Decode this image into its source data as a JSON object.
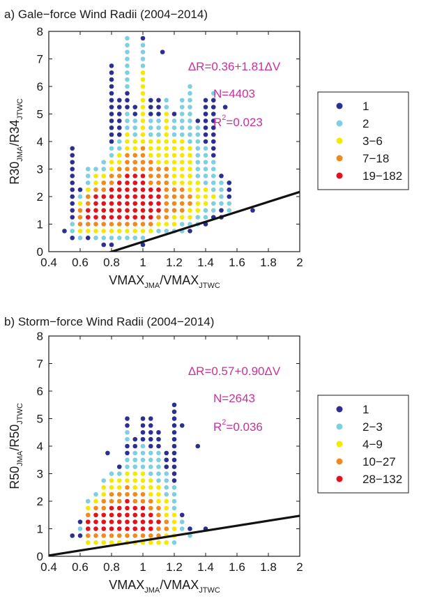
{
  "chart_data": [
    {
      "type": "scatter",
      "title": "a) Gale−force Wind Radii (2004−2014)",
      "xlabel": {
        "main": "VMAX",
        "sub1": "JMA",
        "mid": "/VMAX",
        "sub2": "JTWC"
      },
      "ylabel": {
        "main": "R30",
        "sub1": "JMA",
        "mid": "/R34",
        "sub2": "JTWC"
      },
      "xlim": [
        0.4,
        2
      ],
      "ylim": [
        0,
        8
      ],
      "xticks": [
        "0.4",
        "0.6",
        "0.8",
        "1",
        "1.2",
        "1.4",
        "1.6",
        "1.8",
        "2"
      ],
      "yticks": [
        "0",
        "1",
        "2",
        "3",
        "4",
        "5",
        "6",
        "7",
        "8"
      ],
      "grid": false,
      "legend_position": "right",
      "legend": [
        {
          "label": "1",
          "color": "#2b2f8f"
        },
        {
          "label": "2",
          "color": "#7ecfe0"
        },
        {
          "label": "3−6",
          "color": "#f5e900"
        },
        {
          "label": "7−18",
          "color": "#f08a1e"
        },
        {
          "label": "19−182",
          "color": "#e3121c"
        }
      ],
      "annotations": [
        "ΔR=0.36+1.81ΔV",
        "N=4403",
        "R",
        "2",
        "=0.023"
      ],
      "regression": {
        "intercept": 0.36,
        "slope": 1.81,
        "x": [
          0.4,
          2
        ]
      },
      "point_grid": {
        "x_step": 0.05,
        "y_step": 0.25
      },
      "points": [
        {
          "x": 0.5,
          "range": [
            0.75,
            0.75
          ],
          "tiers": [
            "1"
          ]
        },
        {
          "x": 0.55,
          "range": [
            0.5,
            3.75
          ],
          "tiers": [
            "1",
            "2",
            "2",
            "1",
            "1",
            "1",
            "1",
            "1",
            "1",
            "1",
            "1",
            "1",
            "1",
            "1"
          ]
        },
        {
          "x": 0.6,
          "range": [
            0.5,
            2.25
          ],
          "tiers": [
            "2",
            "3",
            "4",
            "4",
            "4",
            "3",
            "2",
            "1"
          ]
        },
        {
          "x": 0.65,
          "range": [
            0.5,
            3.0
          ],
          "tiers": [
            "1",
            "3",
            "4",
            "5",
            "5",
            "4",
            "4",
            "3",
            "2",
            "2",
            "2"
          ]
        },
        {
          "x": 0.7,
          "range": [
            0.5,
            3.0
          ],
          "tiers": [
            "2",
            "3",
            "4",
            "5",
            "5",
            "5",
            "5",
            "4",
            "3",
            "3",
            "2"
          ]
        },
        {
          "x": 0.75,
          "range": [
            0.25,
            3.25
          ],
          "tiers": [
            "1",
            "2",
            "3",
            "4",
            "5",
            "5",
            "5",
            "5",
            "4",
            "4",
            "3",
            "2",
            "2"
          ]
        },
        {
          "x": 0.8,
          "range": [
            0.25,
            6.75
          ],
          "tiers": [
            "1",
            "2",
            "3",
            "4",
            "5",
            "5",
            "5",
            "5",
            "5",
            "4",
            "4",
            "3",
            "3",
            "2",
            "2",
            "1",
            "1",
            "1",
            "1",
            "1",
            "1",
            "1",
            "1",
            "1",
            "1",
            "1",
            "1"
          ]
        },
        {
          "x": 0.85,
          "range": [
            0.5,
            5.5
          ],
          "tiers": [
            "2",
            "3",
            "4",
            "5",
            "5",
            "5",
            "5",
            "5",
            "5",
            "4",
            "4",
            "3",
            "3",
            "2",
            "2",
            "1",
            "1",
            "1",
            "1",
            "1",
            "1"
          ]
        },
        {
          "x": 0.9,
          "range": [
            0.5,
            7.75
          ],
          "tiers": [
            "2",
            "3",
            "4",
            "5",
            "5",
            "5",
            "5",
            "5",
            "5",
            "5",
            "4",
            "4",
            "4",
            "3",
            "3",
            "3",
            "2",
            "2",
            "2",
            "1",
            "1",
            "1",
            "2",
            "2",
            "2",
            "2",
            "2",
            "2",
            "2",
            "2"
          ]
        },
        {
          "x": 0.95,
          "range": [
            0.5,
            5.25
          ],
          "tiers": [
            "2",
            "3",
            "4",
            "5",
            "5",
            "5",
            "5",
            "5",
            "5",
            "5",
            "4",
            "4",
            "4",
            "3",
            "3",
            "2",
            "2",
            "2",
            "1",
            "1"
          ]
        },
        {
          "x": 1.0,
          "range": [
            0.25,
            7.75
          ],
          "tiers": [
            "1",
            "2",
            "3",
            "4",
            "5",
            "5",
            "5",
            "5",
            "5",
            "5",
            "5",
            "4",
            "4",
            "4",
            "4",
            "3",
            "3",
            "3",
            "3",
            "3",
            "3",
            "3",
            "3",
            "3",
            "3",
            "3",
            "2",
            "2",
            "2",
            "2",
            "1"
          ]
        },
        {
          "x": 1.05,
          "range": [
            0.75,
            5.5
          ],
          "tiers": [
            "3",
            "4",
            "5",
            "5",
            "5",
            "5",
            "5",
            "4",
            "4",
            "4",
            "4",
            "3",
            "3",
            "3",
            "2",
            "2",
            "2",
            "1",
            "1",
            "1"
          ]
        },
        {
          "x": 1.1,
          "range": [
            0.75,
            5.75
          ],
          "tiers": [
            "2",
            "3",
            "4",
            "5",
            "5",
            "5",
            "5",
            "4",
            "4",
            "4",
            "3",
            "3",
            "3",
            "3",
            "2",
            "2",
            "2",
            "1",
            "1",
            "1"
          ]
        },
        {
          "x": 1.15,
          "range": [
            0.75,
            5.75
          ],
          "tiers": [
            "2",
            "3",
            "4",
            "4",
            "4",
            "4",
            "4",
            "4",
            "4",
            "4",
            "3",
            "3",
            "3",
            "3",
            "3",
            "3",
            "3",
            "3",
            "2",
            "2"
          ]
        },
        {
          "x": 1.2,
          "range": [
            0.75,
            5.0
          ],
          "tiers": [
            "2",
            "3",
            "3",
            "4",
            "4",
            "4",
            "4",
            "3",
            "3",
            "3",
            "3",
            "3",
            "3",
            "3",
            "2",
            "2",
            "2",
            "1"
          ]
        },
        {
          "x": 1.25,
          "range": [
            0.75,
            5.75
          ],
          "tiers": [
            "2",
            "2",
            "3",
            "4",
            "4",
            "4",
            "4",
            "3",
            "3",
            "3",
            "3",
            "3",
            "3",
            "3",
            "2",
            "2",
            "2",
            "2",
            "2",
            "2"
          ]
        },
        {
          "x": 1.3,
          "range": [
            0.75,
            6.0
          ],
          "tiers": [
            "1",
            "2",
            "3",
            "3",
            "4",
            "4",
            "3",
            "3",
            "3",
            "3",
            "3",
            "3",
            "3",
            "2",
            "2",
            "2",
            "2",
            "2",
            "2",
            "2",
            "2",
            "2"
          ]
        },
        {
          "x": 1.35,
          "range": [
            1.0,
            4.75
          ],
          "tiers": [
            "2",
            "2",
            "3",
            "3",
            "3",
            "3",
            "3",
            "2",
            "2",
            "2",
            "2",
            "2",
            "2",
            "2",
            "2",
            "1"
          ]
        },
        {
          "x": 1.4,
          "range": [
            1.0,
            5.5
          ],
          "tiers": [
            "1",
            "2",
            "2",
            "3",
            "3",
            "3",
            "2",
            "2",
            "2",
            "2",
            "2",
            "2",
            "1",
            "1",
            "1",
            "1",
            "1",
            "1",
            "1"
          ]
        },
        {
          "x": 1.45,
          "range": [
            1.25,
            5.75
          ],
          "tiers": [
            "1",
            "2",
            "2",
            "3",
            "2",
            "2",
            "2",
            "2",
            "2",
            "1",
            "1",
            "1",
            "1",
            "1",
            "1",
            "1",
            "1",
            "1",
            "2"
          ]
        },
        {
          "x": 1.5,
          "range": [
            1.25,
            2.75
          ],
          "tiers": [
            "1",
            "1",
            "2",
            "2",
            "2",
            "2",
            "1"
          ]
        },
        {
          "x": 1.55,
          "range": [
            1.5,
            2.5
          ],
          "tiers": [
            "2",
            "2",
            "1",
            "1",
            "1"
          ]
        },
        {
          "x": 1.7,
          "range": [
            1.5,
            1.5
          ],
          "tiers": [
            "1"
          ]
        }
      ],
      "extra_points": [
        {
          "x": 1.125,
          "y": 7.25,
          "tier": "1"
        },
        {
          "x": 1.525,
          "y": 5.25,
          "tier": "1"
        },
        {
          "x": 1.4,
          "y": 5.0,
          "tier": "1"
        }
      ]
    },
    {
      "type": "scatter",
      "title": "b) Storm−force Wind Radii (2004−2014)",
      "xlabel": {
        "main": "VMAX",
        "sub1": "JMA",
        "mid": "/VMAX",
        "sub2": "JTWC"
      },
      "ylabel": {
        "main": "R50",
        "sub1": "JMA",
        "mid": "/R50",
        "sub2": "JTWC"
      },
      "xlim": [
        0.4,
        2
      ],
      "ylim": [
        0,
        8
      ],
      "xticks": [
        "0.4",
        "0.6",
        "0.8",
        "1",
        "1.2",
        "1.4",
        "1.6",
        "1.8",
        "2"
      ],
      "yticks": [
        "0",
        "1",
        "2",
        "3",
        "4",
        "5",
        "6",
        "7",
        "8"
      ],
      "grid": false,
      "legend_position": "right",
      "legend": [
        {
          "label": "1",
          "color": "#2b2f8f"
        },
        {
          "label": "2−3",
          "color": "#7ecfe0"
        },
        {
          "label": "4−9",
          "color": "#f5e900"
        },
        {
          "label": "10−27",
          "color": "#f08a1e"
        },
        {
          "label": "28−132",
          "color": "#e3121c"
        }
      ],
      "annotations": [
        "ΔR=0.57+0.90ΔV",
        "N=2643",
        "R",
        "2",
        "=0.036"
      ],
      "regression": {
        "intercept": 0.57,
        "slope": 0.9,
        "x": [
          0.4,
          2
        ]
      },
      "point_grid": {
        "x_step": 0.05,
        "y_step": 0.25
      },
      "points": [
        {
          "x": 0.55,
          "range": [
            0.75,
            0.75
          ],
          "tiers": [
            "1"
          ]
        },
        {
          "x": 0.6,
          "range": [
            0.75,
            1.25
          ],
          "tiers": [
            "1",
            "2",
            "1"
          ]
        },
        {
          "x": 0.65,
          "range": [
            0.5,
            2.0
          ],
          "tiers": [
            "3",
            "4",
            "5",
            "5",
            "4",
            "3",
            "2"
          ]
        },
        {
          "x": 0.7,
          "range": [
            0.5,
            2.25
          ],
          "tiers": [
            "3",
            "4",
            "5",
            "5",
            "5",
            "4",
            "3",
            "2"
          ]
        },
        {
          "x": 0.75,
          "range": [
            0.5,
            2.75
          ],
          "tiers": [
            "3",
            "4",
            "5",
            "5",
            "5",
            "4",
            "4",
            "3",
            "3",
            "2"
          ]
        },
        {
          "x": 0.8,
          "range": [
            0.5,
            3.0
          ],
          "tiers": [
            "3",
            "4",
            "5",
            "5",
            "5",
            "5",
            "4",
            "4",
            "3",
            "3",
            "2"
          ]
        },
        {
          "x": 0.85,
          "range": [
            0.5,
            3.25
          ],
          "tiers": [
            "3",
            "4",
            "5",
            "5",
            "5",
            "5",
            "4",
            "4",
            "3",
            "3",
            "2",
            "1"
          ]
        },
        {
          "x": 0.9,
          "range": [
            0.5,
            5.0
          ],
          "tiers": [
            "3",
            "4",
            "5",
            "5",
            "5",
            "5",
            "5",
            "4",
            "4",
            "3",
            "3",
            "2",
            "2",
            "1",
            "1",
            "2",
            "2",
            "1",
            "1"
          ]
        },
        {
          "x": 0.95,
          "range": [
            0.5,
            4.25
          ],
          "tiers": [
            "3",
            "4",
            "5",
            "5",
            "5",
            "5",
            "4",
            "4",
            "3",
            "3",
            "3",
            "2",
            "2",
            "2",
            "1",
            "1"
          ]
        },
        {
          "x": 1.0,
          "range": [
            0.5,
            5.0
          ],
          "tiers": [
            "3",
            "4",
            "5",
            "5",
            "5",
            "5",
            "4",
            "4",
            "3",
            "3",
            "3",
            "2",
            "2",
            "2",
            "2",
            "1",
            "1",
            "1",
            "1"
          ]
        },
        {
          "x": 1.05,
          "range": [
            0.5,
            5.0
          ],
          "tiers": [
            "3",
            "4",
            "5",
            "5",
            "5",
            "4",
            "4",
            "3",
            "3",
            "3",
            "2",
            "2",
            "2",
            "2",
            "1",
            "1",
            "1",
            "1",
            "1"
          ]
        },
        {
          "x": 1.1,
          "range": [
            0.5,
            4.5
          ],
          "tiers": [
            "3",
            "4",
            "4",
            "5",
            "4",
            "4",
            "3",
            "3",
            "3",
            "2",
            "2",
            "2",
            "2",
            "2",
            "1",
            "1",
            "1"
          ]
        },
        {
          "x": 1.15,
          "range": [
            0.5,
            3.75
          ],
          "tiers": [
            "3",
            "3",
            "4",
            "4",
            "3",
            "3",
            "3",
            "2",
            "2",
            "2",
            "2",
            "1",
            "1",
            "1"
          ]
        },
        {
          "x": 1.2,
          "range": [
            0.5,
            5.5
          ],
          "tiers": [
            "2",
            "3",
            "3",
            "3",
            "3",
            "2",
            "2",
            "2",
            "2",
            "1",
            "1",
            "1",
            "1",
            "1",
            "1",
            "1",
            "1",
            "1",
            "1",
            "1",
            "1"
          ]
        },
        {
          "x": 1.25,
          "range": [
            1.0,
            1.5
          ],
          "tiers": [
            "2",
            "2",
            "1"
          ]
        },
        {
          "x": 1.3,
          "range": [
            0.75,
            1.0
          ],
          "tiers": [
            "2",
            "1"
          ]
        }
      ],
      "extra_points": [
        {
          "x": 1.4,
          "y": 1.0,
          "tier": "1"
        },
        {
          "x": 1.35,
          "y": 4.0,
          "tier": "1"
        },
        {
          "x": 1.25,
          "y": 4.75,
          "tier": "1"
        },
        {
          "x": 0.775,
          "y": 3.75,
          "tier": "1"
        }
      ]
    }
  ]
}
